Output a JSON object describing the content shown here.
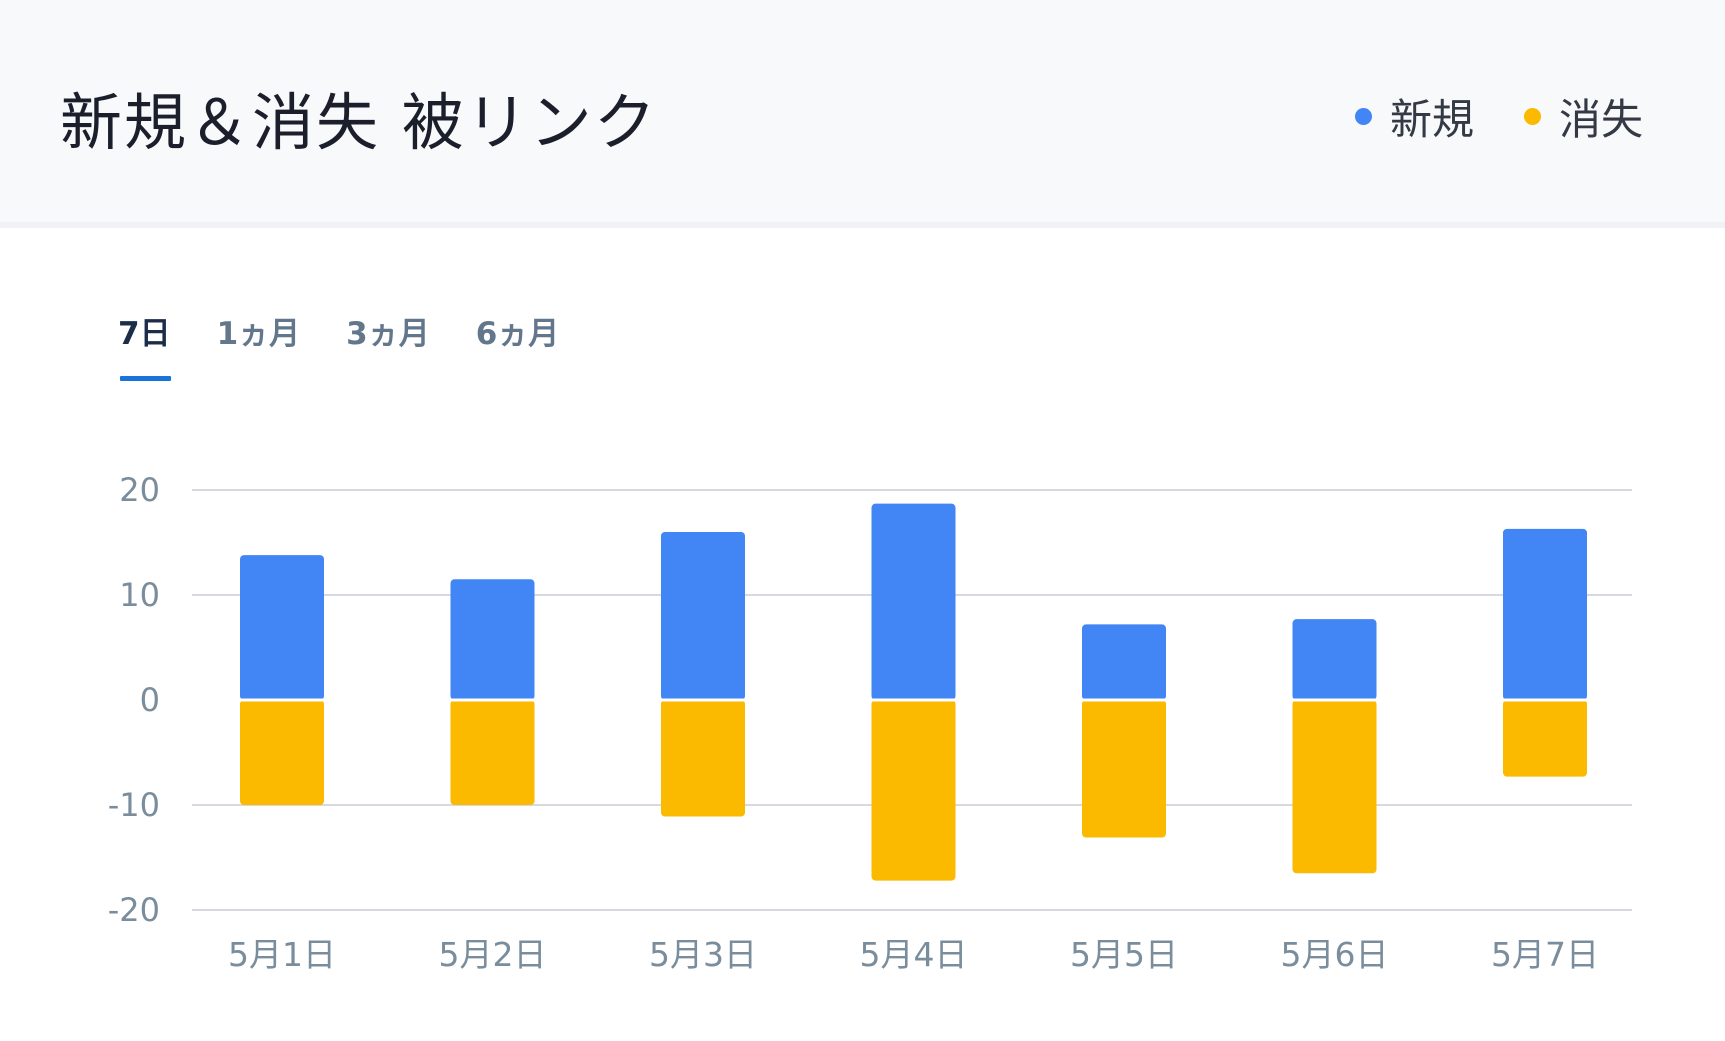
{
  "header": {
    "title": "新規＆消失 被リンク",
    "legend": [
      {
        "label": "新規",
        "color": "#4285f4"
      },
      {
        "label": "消失",
        "color": "#fbb900"
      }
    ]
  },
  "tabs": [
    {
      "label": "7日",
      "active": true
    },
    {
      "label": "1ヵ月",
      "active": false
    },
    {
      "label": "3ヵ月",
      "active": false
    },
    {
      "label": "6ヵ月",
      "active": false
    }
  ],
  "chart_data": {
    "type": "bar",
    "stacked": "diverging",
    "categories": [
      "5月1日",
      "5月2日",
      "5月3日",
      "5月4日",
      "5月5日",
      "5月6日",
      "5月7日"
    ],
    "series": [
      {
        "name": "新規",
        "color": "#4285f4",
        "values": [
          13.8,
          11.5,
          16.0,
          18.7,
          7.2,
          7.7,
          16.3
        ]
      },
      {
        "name": "消失",
        "color": "#fbb900",
        "values": [
          -10.0,
          -10.0,
          -11.1,
          -17.2,
          -13.1,
          -16.5,
          -7.3
        ]
      }
    ],
    "yticks": [
      20,
      10,
      0,
      -10,
      -20
    ],
    "ylim": [
      -20,
      20
    ],
    "grid": true,
    "legend_position": "top-right"
  }
}
